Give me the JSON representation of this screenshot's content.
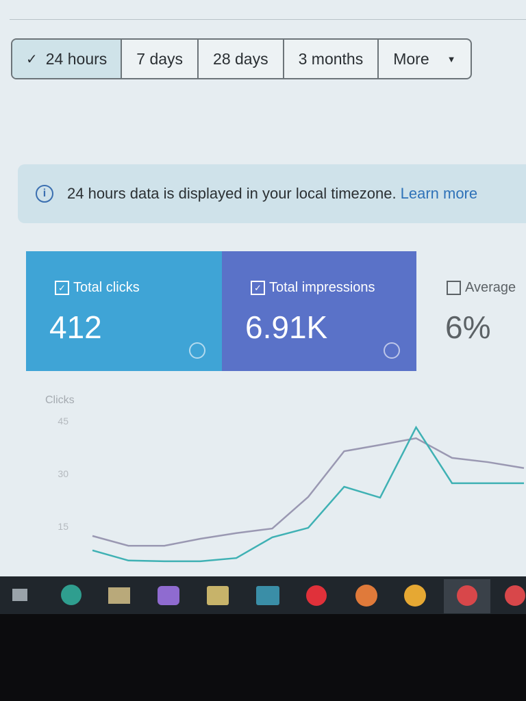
{
  "tabs": [
    "24 hours",
    "7 days",
    "28 days",
    "3 months",
    "More"
  ],
  "banner": {
    "text": "24 hours data is displayed in your local timezone.",
    "link": "Learn more"
  },
  "metrics": [
    {
      "label": "Total clicks",
      "value": "412"
    },
    {
      "label": "Total impressions",
      "value": "6.91K"
    },
    {
      "label": "Average",
      "value": "6%"
    }
  ],
  "chart_data": {
    "type": "line",
    "y_label": "Clicks",
    "categories": [
      null,
      null,
      null,
      null,
      null,
      null,
      null,
      null,
      null,
      null,
      null,
      null,
      null
    ],
    "series": [
      {
        "color": "#9a98b2",
        "values": [
          12.3,
          9.5,
          9.5,
          11.5,
          13.1,
          14.4,
          23.4,
          36.4,
          38.2,
          40.1,
          34.5,
          33.3,
          31.6
        ]
      },
      {
        "color": "#3fb1b4",
        "values": [
          8.2,
          5.3,
          5.1,
          5.1,
          6.0,
          11.9,
          14.6,
          26.3,
          23.2,
          43.2,
          27.3,
          27.3,
          27.3
        ]
      }
    ],
    "ylim": [
      0,
      45
    ],
    "yticks": [
      15,
      30,
      45
    ]
  }
}
